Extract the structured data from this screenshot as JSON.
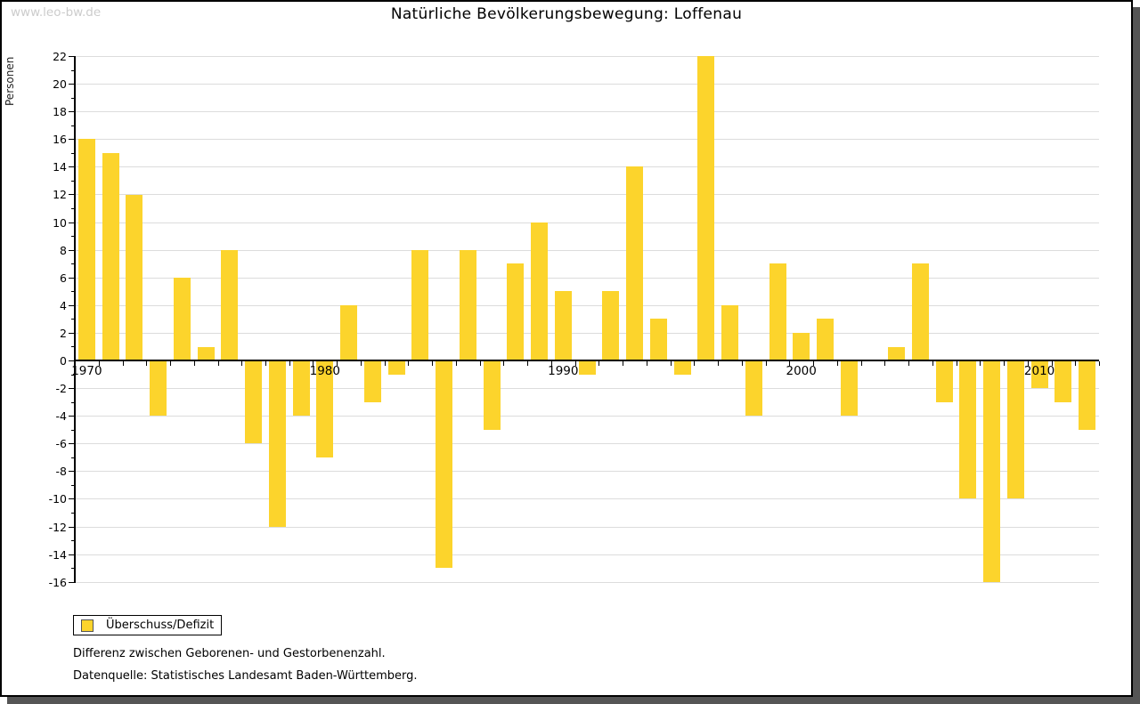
{
  "watermark": "www.leo-bw.de",
  "title": "Natürliche Bevölkerungsbewegung: Loffenau",
  "legend": {
    "label": "Überschuss/Defizit",
    "swatch_color": "#fcd42c"
  },
  "captions": {
    "line1": "Differenz zwischen Geborenen- und Gestorbenenzahl.",
    "line2": "Datenquelle: Statistisches Landesamt Baden-Württemberg."
  },
  "colors": {
    "bar": "#fcd42c",
    "grid": "#dcdcdc",
    "axis": "#000000",
    "watermark": "#cccccc",
    "frame_shadow": "#555555"
  },
  "chart_data": {
    "type": "bar",
    "title": "Natürliche Bevölkerungsbewegung: Loffenau",
    "ylabel": "Personen",
    "xlabel": "",
    "ylim": [
      -16,
      22
    ],
    "ytick_step": 2,
    "grid": "horizontal",
    "legend_position": "bottom-left",
    "series_name": "Überschuss/Defizit",
    "categories": [
      1970,
      1971,
      1972,
      1973,
      1974,
      1975,
      1976,
      1977,
      1978,
      1979,
      1980,
      1981,
      1982,
      1983,
      1984,
      1985,
      1986,
      1987,
      1988,
      1989,
      1990,
      1991,
      1992,
      1993,
      1994,
      1995,
      1996,
      1997,
      1998,
      1999,
      2000,
      2001,
      2002,
      2003,
      2004,
      2005,
      2006,
      2007,
      2008,
      2009,
      2010,
      2011,
      2012
    ],
    "values": [
      16,
      15,
      12,
      -4,
      6,
      1,
      8,
      -6,
      -12,
      -4,
      -7,
      4,
      -3,
      -1,
      8,
      -15,
      8,
      -5,
      7,
      10,
      5,
      -1,
      5,
      14,
      3,
      -1,
      22,
      4,
      -4,
      7,
      2,
      3,
      -4,
      0,
      1,
      7,
      -3,
      -10,
      -16,
      -10,
      -2,
      -3,
      -5
    ],
    "x_labeled_years": [
      1970,
      1980,
      1990,
      2000,
      2010
    ]
  }
}
